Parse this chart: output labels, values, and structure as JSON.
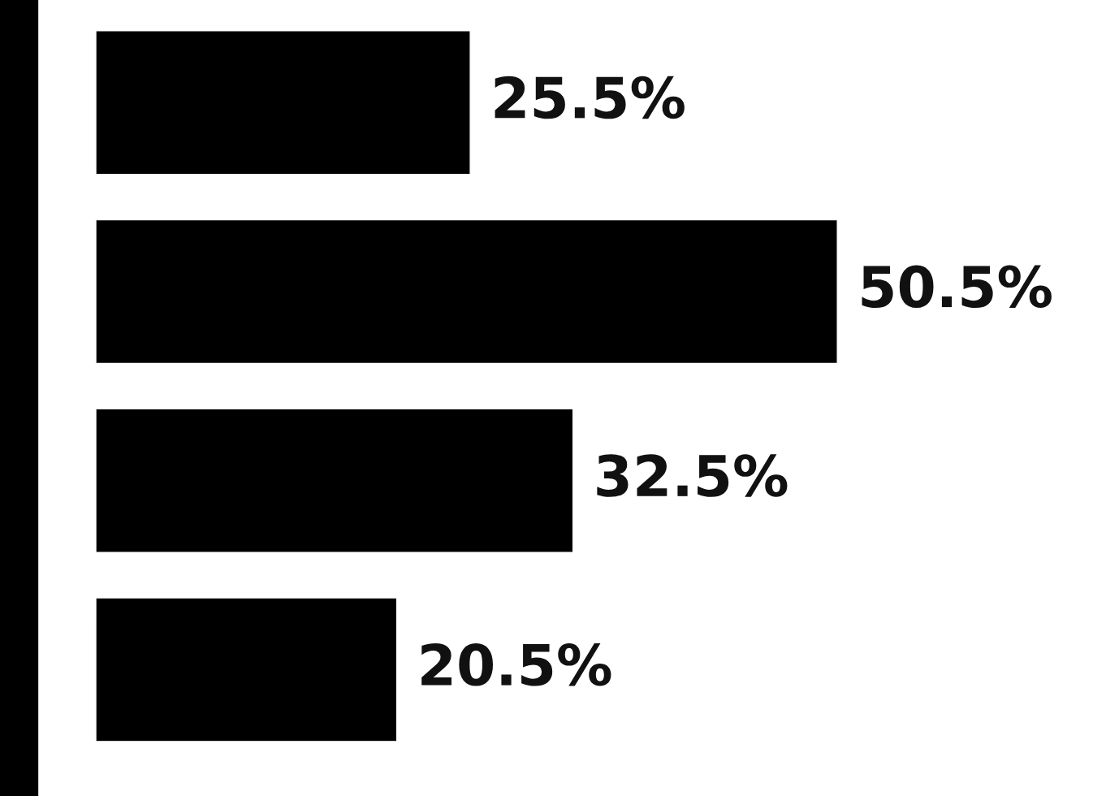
{
  "chart_data": {
    "type": "bar",
    "orientation": "horizontal",
    "categories": [
      null,
      null,
      null,
      null
    ],
    "values": [
      25.5,
      50.5,
      32.5,
      20.5
    ],
    "value_labels": [
      "25.5%",
      "50.5%",
      "32.5%",
      "20.5%"
    ],
    "color": "#000000",
    "tick_labels": false,
    "grid": false,
    "legend": false
  }
}
